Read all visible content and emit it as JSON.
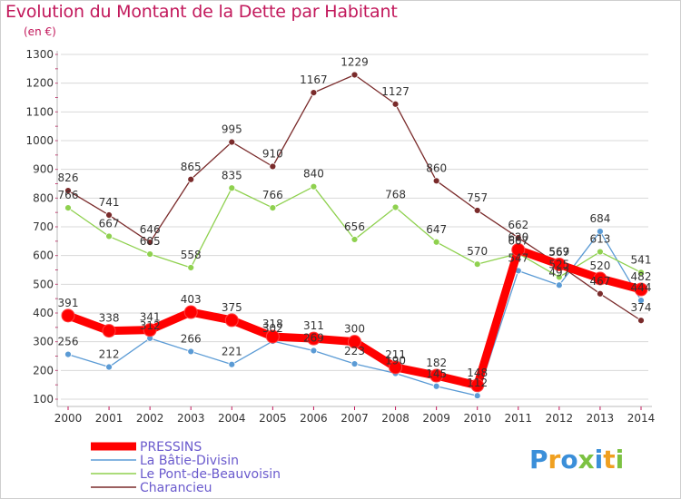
{
  "title": "Evolution du Montant de la Dette par Habitant",
  "unit": "(en €)",
  "logo": "Proxiti",
  "colors": {
    "title": "#c2185b",
    "grid": "#d8d8d8",
    "axis": "#bbbbbb",
    "tick_mark": "#c2185b"
  },
  "chart_data": {
    "type": "line",
    "x": [
      "2000",
      "2001",
      "2002",
      "2003",
      "2004",
      "2005",
      "2006",
      "2007",
      "2008",
      "2009",
      "2010",
      "2011",
      "2012",
      "2013",
      "2014"
    ],
    "ylim": [
      100,
      1300
    ],
    "yticks": [
      100,
      200,
      300,
      400,
      500,
      600,
      700,
      800,
      900,
      1000,
      1100,
      1200,
      1300
    ],
    "grid": "horizontal",
    "legend_position": "bottom-left",
    "series": [
      {
        "name": "PRESSINS",
        "color": "#ff0000",
        "emphasis": true,
        "values": [
          391,
          338,
          341,
          403,
          375,
          318,
          311,
          300,
          211,
          182,
          148,
          620,
          569,
          520,
          482
        ],
        "labels": [
          "391",
          "338",
          "341",
          "403",
          "375",
          "318",
          "311",
          "300",
          "211",
          "182",
          "148",
          "620",
          "569",
          "520",
          "482"
        ]
      },
      {
        "name": "La Bâtie-Divisin",
        "color": "#5b9bd5",
        "values": [
          256,
          212,
          312,
          266,
          221,
          302,
          269,
          223,
          190,
          145,
          112,
          547,
          497,
          684,
          444
        ],
        "labels": [
          "256",
          "212",
          "312",
          "266",
          "221",
          "302",
          "269",
          "223",
          "190",
          "145",
          "112",
          "547",
          "497",
          "684",
          "444"
        ]
      },
      {
        "name": "Le Pont-de-Beauvoisin",
        "color": "#8fd14f",
        "values": [
          766,
          667,
          605,
          558,
          835,
          766,
          840,
          656,
          768,
          647,
          570,
          607,
          525,
          613,
          541
        ],
        "labels": [
          "766",
          "667",
          "605",
          "558",
          "835",
          "766",
          "840",
          "656",
          "768",
          "647",
          "570",
          "607",
          "525",
          "613",
          "541"
        ]
      },
      {
        "name": "Charancieu",
        "color": "#7a2b2b",
        "values": [
          826,
          741,
          646,
          865,
          995,
          910,
          1167,
          1229,
          1127,
          860,
          757,
          662,
          567,
          467,
          374
        ],
        "labels": [
          "826",
          "741",
          "646",
          "865",
          "995",
          "910",
          "1167",
          "1229",
          "1127",
          "860",
          "757",
          "662",
          "567",
          "467",
          "374"
        ]
      }
    ]
  }
}
